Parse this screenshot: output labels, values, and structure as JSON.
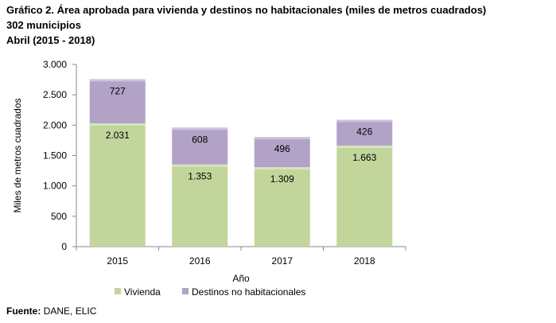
{
  "header": {
    "title": "Gráfico 2. Área aprobada para vivienda y destinos no habitacionales (miles de metros cuadrados)",
    "subtitle": "302 municipios",
    "period": "Abril (2015 - 2018)"
  },
  "footer": {
    "source_label": "Fuente:",
    "source_text": "DANE, ELIC"
  },
  "chart_data": {
    "type": "bar",
    "stacked": true,
    "categories": [
      "2015",
      "2016",
      "2017",
      "2018"
    ],
    "series": [
      {
        "name": "Vivienda",
        "values": [
          2031,
          1353,
          1309,
          1663
        ],
        "labels": [
          "2.031",
          "1.353",
          "1.309",
          "1.663"
        ],
        "color": "#c2d69b"
      },
      {
        "name": "Destinos no habitacionales",
        "values": [
          727,
          608,
          496,
          426
        ],
        "labels": [
          "727",
          "608",
          "496",
          "426"
        ],
        "color": "#b3a2c7"
      }
    ],
    "xlabel": "Año",
    "ylabel": "Miles de metros cuadrados",
    "ylim": [
      0,
      3000
    ],
    "yticks": [
      0,
      500,
      1000,
      1500,
      2000,
      2500,
      3000
    ],
    "ytick_labels": [
      "0",
      "500",
      "1.000",
      "1.500",
      "2.000",
      "2.500",
      "3.000"
    ],
    "grid": false,
    "legend": "bottom"
  }
}
